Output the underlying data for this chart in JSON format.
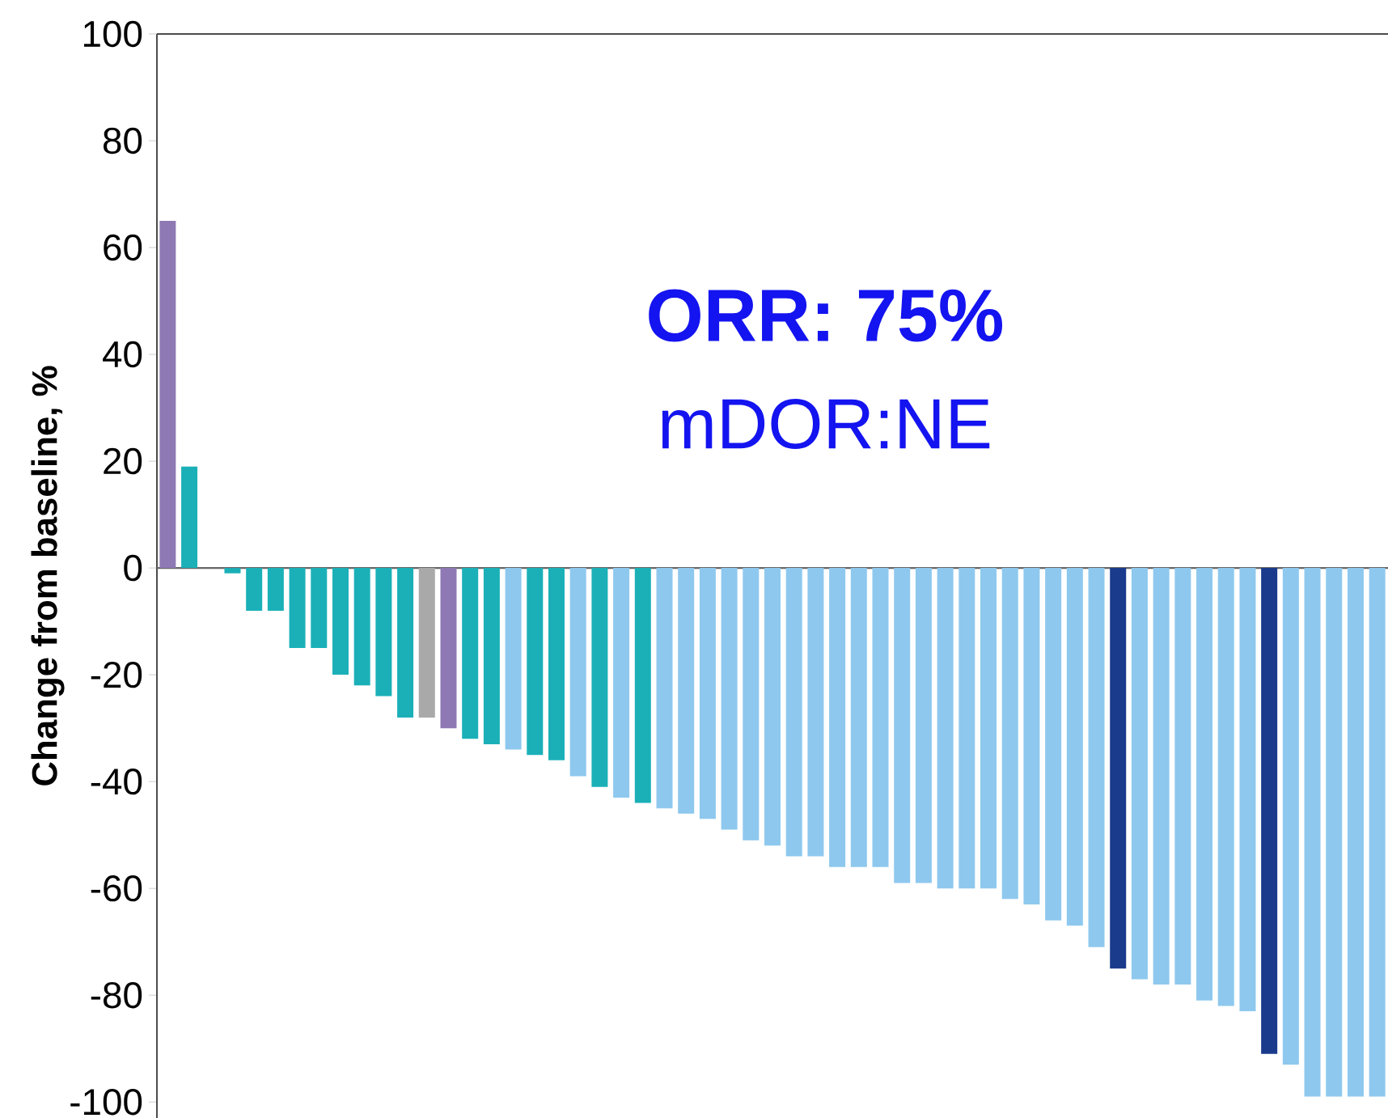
{
  "chart_data": {
    "type": "bar",
    "ylabel": "Change from baseline, %",
    "categories": [
      null,
      null,
      null,
      null,
      null,
      null,
      null,
      null,
      null,
      null,
      null,
      null,
      null,
      null,
      null,
      null,
      null,
      null,
      null,
      null,
      null,
      null,
      null,
      null,
      null,
      null,
      null,
      null,
      null,
      null,
      null,
      null,
      null,
      null,
      null,
      null,
      null,
      null,
      null,
      null,
      null,
      null,
      null,
      null,
      null,
      null,
      null,
      null,
      null,
      null,
      null,
      null,
      null,
      null,
      null,
      null,
      null
    ],
    "values": [
      65,
      19,
      0,
      -1,
      -8,
      -8,
      -15,
      -15,
      -20,
      -22,
      -24,
      -28,
      -28,
      -30,
      -32,
      -33,
      -34,
      -35,
      -36,
      -39,
      -41,
      -43,
      -44,
      -45,
      -46,
      -47,
      -49,
      -51,
      -52,
      -54,
      -54,
      -56,
      -56,
      -56,
      -59,
      -59,
      -60,
      -60,
      -60,
      -62,
      -63,
      -66,
      -67,
      -71,
      -75,
      -77,
      -78,
      -78,
      -81,
      -82,
      -83,
      -91,
      -93,
      -99,
      -99,
      -99,
      -99
    ],
    "colors": [
      "#8e79b5",
      "#1bb0b8",
      "#1bb0b8",
      "#1bb0b8",
      "#1bb0b8",
      "#1bb0b8",
      "#1bb0b8",
      "#1bb0b8",
      "#1bb0b8",
      "#1bb0b8",
      "#1bb0b8",
      "#1bb0b8",
      "#a9a9a9",
      "#8e79b5",
      "#1bb0b8",
      "#1bb0b8",
      "#8ec8ee",
      "#1bb0b8",
      "#1bb0b8",
      "#8ec8ee",
      "#1bb0b8",
      "#8ec8ee",
      "#1bb0b8",
      "#8ec8ee",
      "#8ec8ee",
      "#8ec8ee",
      "#8ec8ee",
      "#8ec8ee",
      "#8ec8ee",
      "#8ec8ee",
      "#8ec8ee",
      "#8ec8ee",
      "#8ec8ee",
      "#8ec8ee",
      "#8ec8ee",
      "#8ec8ee",
      "#8ec8ee",
      "#8ec8ee",
      "#8ec8ee",
      "#8ec8ee",
      "#8ec8ee",
      "#8ec8ee",
      "#8ec8ee",
      "#8ec8ee",
      "#1a3a8c",
      "#8ec8ee",
      "#8ec8ee",
      "#8ec8ee",
      "#8ec8ee",
      "#8ec8ee",
      "#8ec8ee",
      "#1a3a8c",
      "#8ec8ee",
      "#8ec8ee",
      "#8ec8ee",
      "#8ec8ee",
      "#8ec8ee"
    ],
    "ylim": [
      -103,
      100
    ],
    "yticks": [
      -100,
      -80,
      -60,
      -40,
      -20,
      0,
      20,
      40,
      60,
      80,
      100
    ],
    "annotations": [
      "ORR: 75%",
      "mDOR:NE"
    ]
  }
}
